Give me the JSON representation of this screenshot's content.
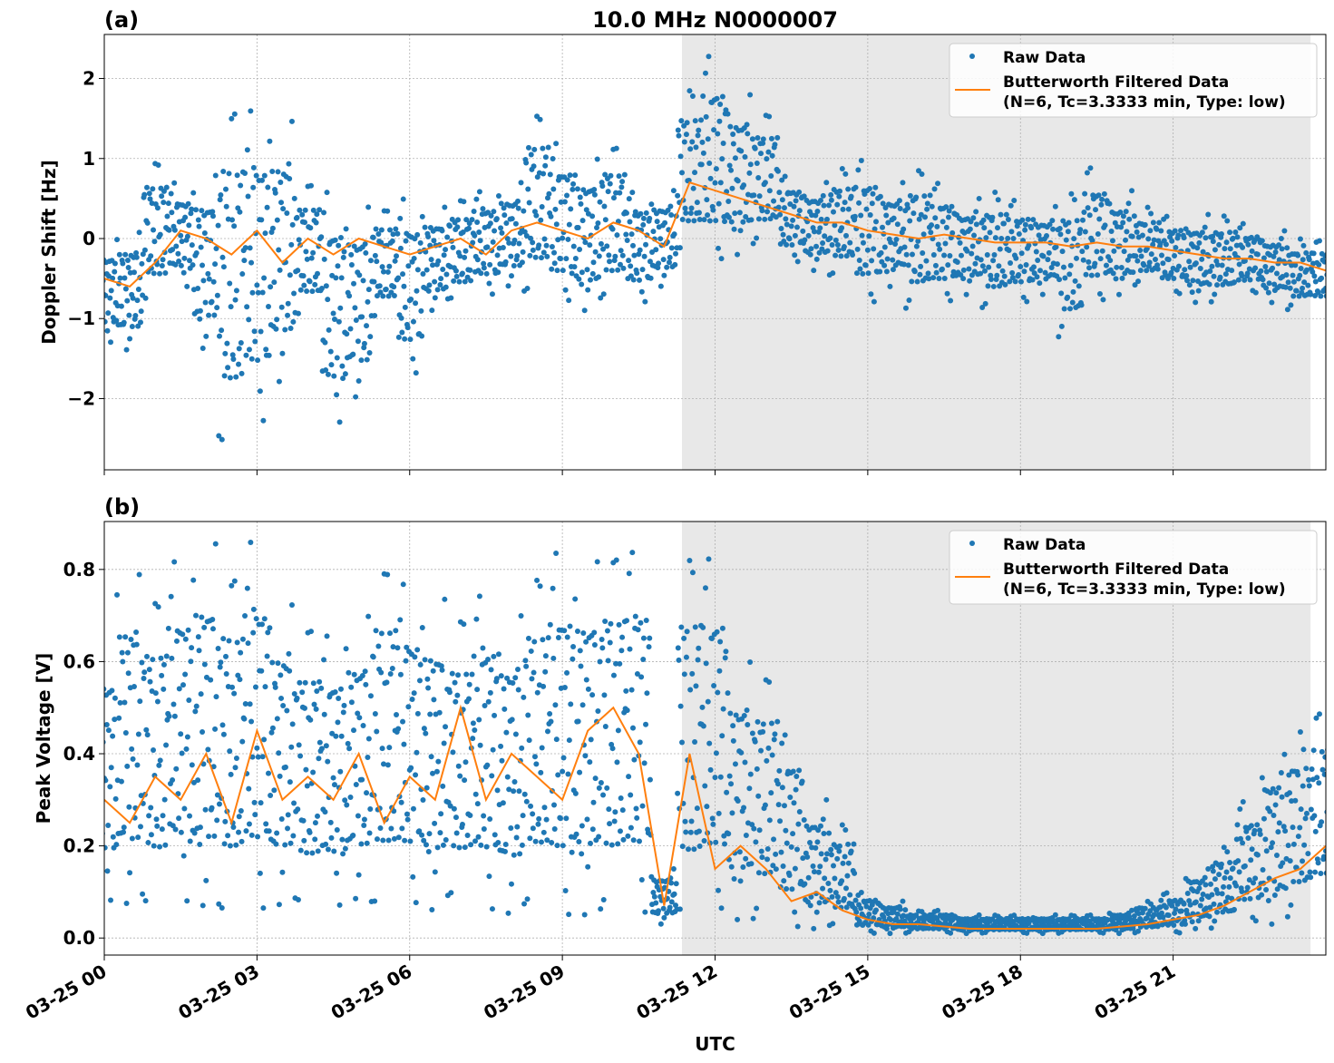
{
  "chart_data": [
    {
      "type": "scatter",
      "panel_label": "(a)",
      "title": "10.0 MHz N0000007",
      "xlabel": "",
      "ylabel": "Doppler Shift [Hz]",
      "xlim_hours": [
        0,
        24
      ],
      "ylim": [
        -2.89,
        2.55
      ],
      "yticks": [
        -2,
        -1,
        0,
        1,
        2
      ],
      "ytick_labels": [
        "−2",
        "−1",
        "0",
        "1",
        "2"
      ],
      "grid": true,
      "legend": "top-right",
      "shaded_span_hours": [
        11.35,
        23.7
      ],
      "legend_entries": [
        "Raw Data",
        "Butterworth Filtered Data\n(N=6, Tc=3.3333 min, Type: low)"
      ],
      "hours": [
        0,
        0.5,
        1,
        1.5,
        2,
        2.5,
        3,
        3.5,
        4,
        4.5,
        5,
        5.5,
        6,
        6.5,
        7,
        7.5,
        8,
        8.5,
        9,
        9.5,
        10,
        10.5,
        11,
        11.5,
        12,
        12.5,
        13,
        13.5,
        14,
        14.5,
        15,
        15.5,
        16,
        16.5,
        17,
        17.5,
        18,
        18.5,
        19,
        19.5,
        20,
        20.5,
        21,
        21.5,
        22,
        22.5,
        23,
        23.5,
        24
      ],
      "filtered": [
        -0.5,
        -0.6,
        -0.3,
        0.1,
        0.0,
        -0.2,
        0.1,
        -0.3,
        0.0,
        -0.2,
        0.0,
        -0.1,
        -0.2,
        -0.1,
        0.0,
        -0.2,
        0.1,
        0.2,
        0.1,
        0.0,
        0.2,
        0.1,
        -0.1,
        0.7,
        0.6,
        0.5,
        0.4,
        0.3,
        0.2,
        0.2,
        0.1,
        0.05,
        0.0,
        0.05,
        0.0,
        -0.05,
        -0.05,
        -0.05,
        -0.1,
        -0.05,
        -0.1,
        -0.1,
        -0.15,
        -0.2,
        -0.25,
        -0.25,
        -0.3,
        -0.3,
        -0.4
      ],
      "raw_min": [
        -1.3,
        -1.4,
        -0.8,
        -0.6,
        -1.4,
        -2.6,
        -2.3,
        -1.8,
        -1.0,
        -2.3,
        -2.0,
        -1.0,
        -1.7,
        -0.9,
        -0.8,
        -0.7,
        -0.6,
        -0.7,
        -0.8,
        -0.9,
        -0.8,
        -0.8,
        -0.6,
        -0.2,
        -0.3,
        -0.2,
        -0.1,
        -0.3,
        -0.4,
        -0.5,
        -0.8,
        -0.6,
        -0.9,
        -0.8,
        -0.7,
        -0.9,
        -0.8,
        -0.7,
        -1.25,
        -0.8,
        -0.7,
        -0.6,
        -0.7,
        -0.8,
        -0.8,
        -0.7,
        -0.8,
        -0.9,
        -0.9
      ],
      "raw_max": [
        0.0,
        0.1,
        1.0,
        0.7,
        0.8,
        1.7,
        1.6,
        1.5,
        0.7,
        0.6,
        0.4,
        0.4,
        0.5,
        0.4,
        0.5,
        0.6,
        0.7,
        1.6,
        1.2,
        1.0,
        1.2,
        0.6,
        0.6,
        1.9,
        2.3,
        1.8,
        1.6,
        0.8,
        0.7,
        0.9,
        1.0,
        0.7,
        0.9,
        0.7,
        0.5,
        0.6,
        0.5,
        0.4,
        0.6,
        0.9,
        0.6,
        0.4,
        0.3,
        0.3,
        0.3,
        0.2,
        0.1,
        0.0,
        0.0
      ]
    },
    {
      "type": "scatter",
      "panel_label": "(b)",
      "title": "",
      "xlabel": "UTC",
      "ylabel": "Peak Voltage [V]",
      "xlim_hours": [
        0,
        24
      ],
      "ylim": [
        -0.037,
        0.904
      ],
      "yticks": [
        0.0,
        0.2,
        0.4,
        0.6,
        0.8
      ],
      "ytick_labels": [
        "0.0",
        "0.2",
        "0.4",
        "0.6",
        "0.8"
      ],
      "grid": true,
      "legend": "top-right",
      "shaded_span_hours": [
        11.35,
        23.7
      ],
      "legend_entries": [
        "Raw Data",
        "Butterworth Filtered Data\n(N=6, Tc=3.3333 min, Type: low)"
      ],
      "xtick_labels": [
        "03-25 00",
        "03-25 03",
        "03-25 06",
        "03-25 09",
        "03-25 12",
        "03-25 15",
        "03-25 18",
        "03-25 21"
      ],
      "hours": [
        0,
        0.5,
        1,
        1.5,
        2,
        2.5,
        3,
        3.5,
        4,
        4.5,
        5,
        5.5,
        6,
        6.5,
        7,
        7.5,
        8,
        8.5,
        9,
        9.5,
        10,
        10.5,
        11,
        11.5,
        12,
        12.5,
        13,
        13.5,
        14,
        14.5,
        15,
        15.5,
        16,
        16.5,
        17,
        17.5,
        18,
        18.5,
        19,
        19.5,
        20,
        20.5,
        21,
        21.5,
        22,
        22.5,
        23,
        23.5,
        24
      ],
      "filtered": [
        0.3,
        0.25,
        0.35,
        0.3,
        0.4,
        0.25,
        0.45,
        0.3,
        0.35,
        0.3,
        0.4,
        0.25,
        0.35,
        0.3,
        0.5,
        0.3,
        0.4,
        0.35,
        0.3,
        0.45,
        0.5,
        0.4,
        0.07,
        0.4,
        0.15,
        0.2,
        0.15,
        0.08,
        0.1,
        0.06,
        0.04,
        0.03,
        0.03,
        0.025,
        0.02,
        0.02,
        0.02,
        0.02,
        0.02,
        0.02,
        0.025,
        0.03,
        0.04,
        0.05,
        0.07,
        0.1,
        0.13,
        0.15,
        0.2
      ],
      "raw_min": [
        0.08,
        0.07,
        0.06,
        0.08,
        0.06,
        0.05,
        0.06,
        0.07,
        0.06,
        0.07,
        0.08,
        0.06,
        0.07,
        0.06,
        0.07,
        0.06,
        0.05,
        0.06,
        0.04,
        0.05,
        0.04,
        0.05,
        0.03,
        0.03,
        0.05,
        0.04,
        0.03,
        0.02,
        0.02,
        0.02,
        0.01,
        0.01,
        0.01,
        0.01,
        0.01,
        0.01,
        0.01,
        0.01,
        0.01,
        0.01,
        0.01,
        0.01,
        0.01,
        0.02,
        0.02,
        0.03,
        0.03,
        0.04,
        0.05
      ],
      "raw_max": [
        0.66,
        0.8,
        0.75,
        0.82,
        0.86,
        0.8,
        0.86,
        0.73,
        0.68,
        0.66,
        0.7,
        0.82,
        0.77,
        0.74,
        0.7,
        0.75,
        0.7,
        0.8,
        0.84,
        0.82,
        0.85,
        0.85,
        0.15,
        0.84,
        0.83,
        0.6,
        0.58,
        0.45,
        0.3,
        0.25,
        0.1,
        0.08,
        0.06,
        0.06,
        0.05,
        0.05,
        0.05,
        0.05,
        0.05,
        0.05,
        0.06,
        0.08,
        0.1,
        0.15,
        0.2,
        0.3,
        0.4,
        0.45,
        0.5
      ]
    }
  ],
  "colors": {
    "raw": "#1f77b4",
    "filtered": "#ff7f0e",
    "shade": "#e8e8e8"
  }
}
